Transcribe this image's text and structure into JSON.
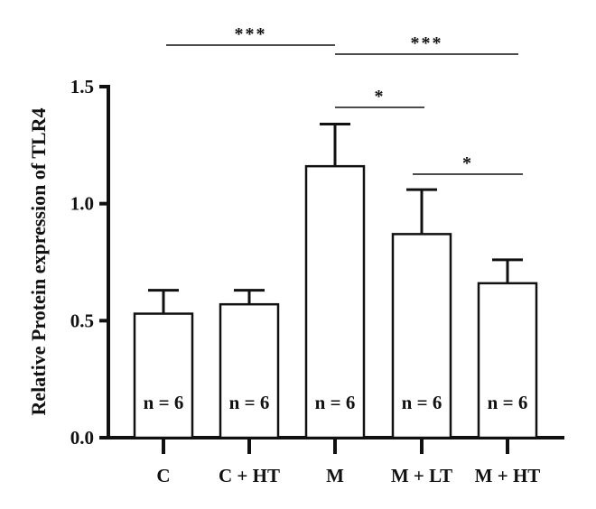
{
  "chart_data": {
    "type": "bar",
    "title": "",
    "xlabel": "",
    "ylabel": "Relative Protein expression of TLR4",
    "ylim": [
      0,
      1.5
    ],
    "yticks": [
      "0.0",
      "0.5",
      "1.0",
      "1.5"
    ],
    "categories": [
      "C",
      "C + HT",
      "M",
      "M + LT",
      "M + HT"
    ],
    "values": [
      0.53,
      0.57,
      1.16,
      0.87,
      0.66
    ],
    "errors": [
      0.1,
      0.06,
      0.18,
      0.19,
      0.1
    ],
    "n_labels": [
      "n = 6",
      "n = 6",
      "n = 6",
      "n = 6",
      "n = 6"
    ],
    "grid": false,
    "bar_fill": "#ffffff",
    "bar_stroke": "#111111",
    "significance": [
      {
        "from": 0,
        "to": 2,
        "label": "***"
      },
      {
        "from": 2,
        "to": 4,
        "label": "***"
      },
      {
        "from": 2,
        "to": 3,
        "label": "*"
      },
      {
        "from": 3,
        "to": 4,
        "label": "*"
      }
    ]
  }
}
